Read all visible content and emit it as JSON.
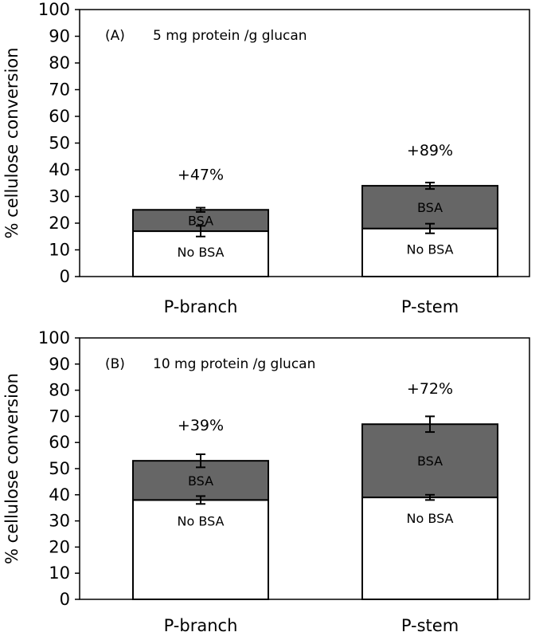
{
  "chart_data": [
    {
      "type": "bar",
      "stacked": true,
      "panel_label": "(A)",
      "title": "5 mg protein /g glucan",
      "ylabel": "% cellulose conversion",
      "xlabel": "",
      "ylim": [
        0,
        100
      ],
      "yticks": [
        "0",
        "10",
        "20",
        "30",
        "40",
        "50",
        "60",
        "70",
        "80",
        "90",
        "100"
      ],
      "categories": [
        "P-branch",
        "P-stem"
      ],
      "series": [
        {
          "name": "No BSA",
          "values": [
            17,
            18
          ],
          "errors": [
            2,
            1.8
          ],
          "color": "#ffffff"
        },
        {
          "name": "BSA",
          "values": [
            8,
            16
          ],
          "errors": [
            0.8,
            1.2
          ],
          "color": "#666666"
        }
      ],
      "increase_labels": [
        "+47%",
        "+89%"
      ],
      "grid": false
    },
    {
      "type": "bar",
      "stacked": true,
      "panel_label": "(B)",
      "title": "10 mg protein /g glucan",
      "ylabel": "% cellulose conversion",
      "xlabel": "",
      "ylim": [
        0,
        100
      ],
      "yticks": [
        "0",
        "10",
        "20",
        "30",
        "40",
        "50",
        "60",
        "70",
        "80",
        "90",
        "100"
      ],
      "categories": [
        "P-branch",
        "P-stem"
      ],
      "series": [
        {
          "name": "No BSA",
          "values": [
            38,
            39
          ],
          "errors": [
            1.5,
            1
          ],
          "color": "#ffffff"
        },
        {
          "name": "BSA",
          "values": [
            15,
            28
          ],
          "errors": [
            2.5,
            3
          ],
          "color": "#666666"
        }
      ],
      "increase_labels": [
        "+39%",
        "+72%"
      ],
      "grid": false
    }
  ]
}
